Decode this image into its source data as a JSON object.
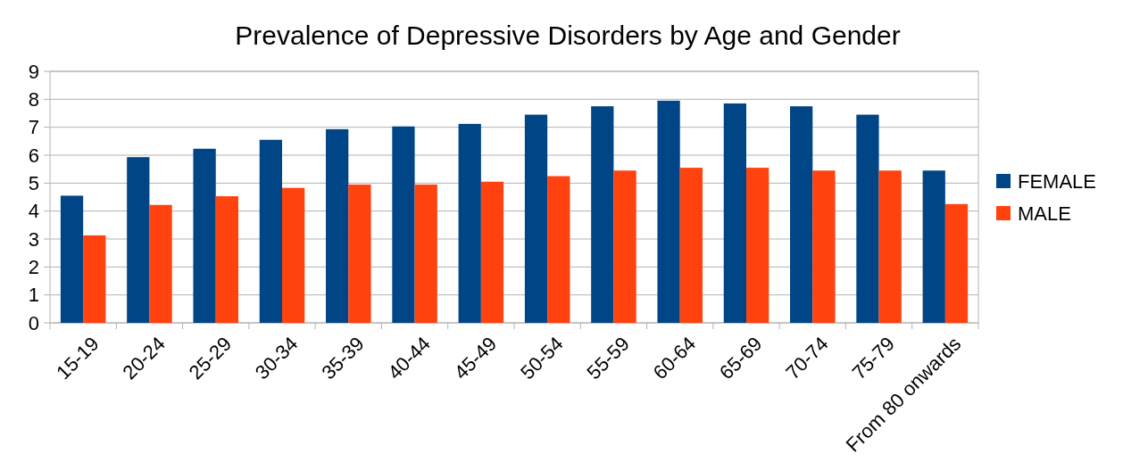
{
  "chart_data": {
    "type": "bar",
    "title": "Prevalence of Depressive Disorders by Age and Gender",
    "categories": [
      "15-19",
      "20-24",
      "25-29",
      "30-34",
      "35-39",
      "40-44",
      "45-49",
      "50-54",
      "55-59",
      "60-64",
      "65-69",
      "70-74",
      "75-79",
      "From 80 onwards"
    ],
    "series": [
      {
        "name": "FEMALE",
        "color": "#004586",
        "values": [
          4.55,
          5.93,
          6.23,
          6.55,
          6.93,
          7.03,
          7.12,
          7.45,
          7.75,
          7.95,
          7.85,
          7.75,
          7.45,
          5.45
        ]
      },
      {
        "name": "MALE",
        "color": "#ff420e",
        "values": [
          3.13,
          4.22,
          4.53,
          4.83,
          4.95,
          4.95,
          5.05,
          5.25,
          5.45,
          5.55,
          5.55,
          5.45,
          5.45,
          4.25
        ]
      }
    ],
    "ylim": [
      0,
      9
    ],
    "yticks": [
      0,
      1,
      2,
      3,
      4,
      5,
      6,
      7,
      8,
      9
    ],
    "grid": "y",
    "legend": "right"
  }
}
